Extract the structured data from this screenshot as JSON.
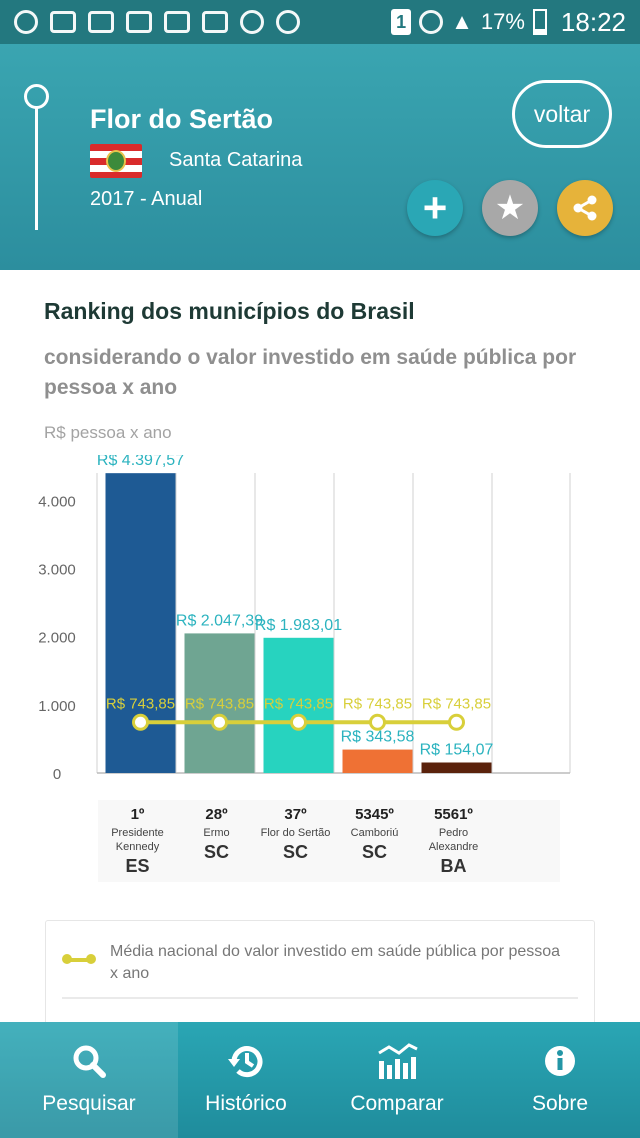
{
  "status_bar": {
    "battery_percent": "17%",
    "sim": "1",
    "time": "18:22"
  },
  "header": {
    "city": "Flor do Sertão",
    "state": "Santa Catarina",
    "period": "2017 - Anual",
    "back_button": "voltar",
    "action_icons": [
      "plus-icon",
      "star-icon",
      "share-icon"
    ]
  },
  "ranking": {
    "title": "Ranking dos municípios do Brasil",
    "subtitle": "considerando o valor investido em saúde pública por pessoa x ano",
    "unit_label": "R$ pessoa x ano"
  },
  "chart_data": {
    "type": "bar",
    "ylabel": "R$ pessoa x ano",
    "ylim": [
      0,
      4400
    ],
    "yticks": [
      0,
      1000,
      2000,
      3000,
      4000
    ],
    "ytick_labels": [
      "0",
      "1.000",
      "2.000",
      "3.000",
      "4.000"
    ],
    "grid": true,
    "categories": [
      "Presidente Kennedy",
      "Ermo",
      "Flor do Sertão",
      "Camboriú",
      "Pedro Alexandre"
    ],
    "values": [
      4397.57,
      2047.39,
      1983.01,
      343.58,
      154.07
    ],
    "value_labels": [
      "R$ 4.397,57",
      "R$ 2.047,39",
      "R$ 1.983,01",
      "R$ 343,58",
      "R$ 154,07"
    ],
    "bar_colors": [
      "#1e5a94",
      "#6fa592",
      "#27d3bf",
      "#ef7134",
      "#5a220c"
    ],
    "series": [
      {
        "type": "line",
        "values": [
          743.85,
          743.85,
          743.85,
          743.85,
          743.85
        ],
        "labels": [
          "R$ 743,85",
          "R$ 743,85",
          "R$ 743,85",
          "R$ 743,85",
          "R$ 743,85"
        ],
        "color": "#d8cf3a"
      }
    ],
    "label_color": "#2bb3bf"
  },
  "rank_table": [
    {
      "pos": "1º",
      "name": "Presidente Kennedy",
      "uf": "ES"
    },
    {
      "pos": "28º",
      "name": "Ermo",
      "uf": "SC"
    },
    {
      "pos": "37º",
      "name": "Flor do Sertão",
      "uf": "SC"
    },
    {
      "pos": "5345º",
      "name": "Camboriú",
      "uf": "SC"
    },
    {
      "pos": "5561º",
      "name": "Pedro Alexandre",
      "uf": "BA"
    }
  ],
  "legend": {
    "text": "Média nacional do valor investido em saúde pública por pessoa x ano"
  },
  "bottom_nav": [
    {
      "label": "Pesquisar",
      "icon": "search-icon",
      "active": true
    },
    {
      "label": "Histórico",
      "icon": "history-icon",
      "active": false
    },
    {
      "label": "Comparar",
      "icon": "compare-chart-icon",
      "active": false
    },
    {
      "label": "Sobre",
      "icon": "info-icon",
      "active": false
    }
  ]
}
